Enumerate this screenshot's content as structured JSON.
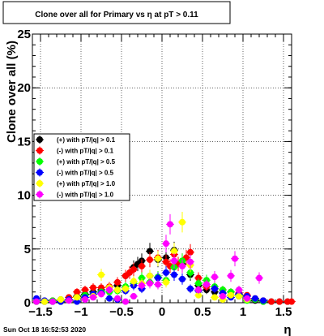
{
  "chart_data": {
    "type": "scatter",
    "title": "Clone  over all for Primary vs   η at pT > 0.11",
    "xlabel": "η",
    "ylabel": "Clone  over all (%)",
    "xlim": [
      -1.6,
      1.6
    ],
    "ylim": [
      0,
      25
    ],
    "x_ticks": [
      -1.5,
      -1,
      -0.5,
      0,
      0.5,
      1,
      1.5
    ],
    "x_tick_labels": [
      "−1.5",
      "−1",
      "−0.5",
      "0",
      "0.5",
      "1",
      "1.5"
    ],
    "y_ticks": [
      0,
      5,
      10,
      15,
      20,
      25
    ],
    "y_tick_labels": [
      "0",
      "5",
      "10",
      "15",
      "20",
      "25"
    ],
    "grid": true,
    "legend_placement": "center-left",
    "series": [
      {
        "name": "(+) with pT/|q| > 0.1",
        "color": "#000000",
        "x": [
          -1.55,
          -1.45,
          -1.35,
          -1.25,
          -1.15,
          -1.05,
          -0.95,
          -0.85,
          -0.75,
          -0.65,
          -0.55,
          -0.45,
          -0.35,
          -0.3,
          -0.25,
          -0.15,
          -0.05,
          0.05,
          0.15,
          0.25,
          0.35,
          0.45,
          0.55,
          0.65,
          0.75,
          0.85,
          0.95,
          1.05,
          1.15,
          1.25,
          1.35,
          1.45,
          1.55
        ],
        "y": [
          0.1,
          0.1,
          0.1,
          0.1,
          0.3,
          0.6,
          0.8,
          1.0,
          1.2,
          1.4,
          1.6,
          2.5,
          3.3,
          3.6,
          3.9,
          4.8,
          4.0,
          4.2,
          4.9,
          3.6,
          2.6,
          1.6,
          1.2,
          1.0,
          0.9,
          0.7,
          0.6,
          0.4,
          0.2,
          0.1,
          0.1,
          0.1,
          0.1
        ]
      },
      {
        "name": "(-) with pT/|q| > 0.1",
        "color": "#ff0000",
        "x": [
          -1.55,
          -1.45,
          -1.35,
          -1.25,
          -1.15,
          -1.05,
          -0.95,
          -0.85,
          -0.75,
          -0.65,
          -0.55,
          -0.45,
          -0.4,
          -0.35,
          -0.25,
          -0.15,
          -0.05,
          0.05,
          0.1,
          0.15,
          0.2,
          0.25,
          0.3,
          0.35,
          0.45,
          0.55,
          0.65,
          0.75,
          0.85,
          0.95,
          1.05,
          1.15,
          1.25,
          1.35,
          1.45,
          1.55,
          1.6
        ],
        "y": [
          0.1,
          0.1,
          0.2,
          0.3,
          0.5,
          1.0,
          1.2,
          1.4,
          1.4,
          1.5,
          1.9,
          2.5,
          2.8,
          3.1,
          3.4,
          4.0,
          4.2,
          3.8,
          3.4,
          4.5,
          3.6,
          3.9,
          4.2,
          4.7,
          2.3,
          1.5,
          1.3,
          1.2,
          1.0,
          0.9,
          0.7,
          0.4,
          0.2,
          0.1,
          0.1,
          0.1,
          0.1
        ]
      },
      {
        "name": "(+) with pT/|q| > 0.5",
        "color": "#00ff00",
        "x": [
          -1.55,
          -1.45,
          -1.35,
          -1.25,
          -1.15,
          -1.05,
          -0.95,
          -0.85,
          -0.75,
          -0.65,
          -0.55,
          -0.45,
          -0.35,
          -0.25,
          -0.15,
          -0.05,
          0.05,
          0.15,
          0.25,
          0.35,
          0.45,
          0.55,
          0.65,
          0.75,
          0.85,
          0.95,
          1.05,
          1.15,
          1.25
        ],
        "y": [
          0.1,
          0.1,
          0.2,
          0.3,
          0.3,
          0.5,
          0.7,
          0.8,
          1.0,
          1.0,
          1.1,
          1.5,
          1.8,
          2.3,
          1.9,
          2.4,
          2.1,
          3.3,
          3.9,
          2.8,
          1.8,
          2.1,
          1.5,
          1.2,
          1.0,
          0.7,
          0.2,
          0.3,
          0.1
        ]
      },
      {
        "name": "(-) with pT/|q| > 0.5",
        "color": "#0000ff",
        "x": [
          -1.55,
          -1.45,
          -1.35,
          -1.25,
          -1.15,
          -1.05,
          -0.95,
          -0.85,
          -0.75,
          -0.65,
          -0.55,
          -0.45,
          -0.35,
          -0.25,
          -0.15,
          -0.05,
          0.05,
          0.15,
          0.25,
          0.35,
          0.45,
          0.55,
          0.65,
          0.75,
          0.85,
          0.95,
          1.05,
          1.15,
          1.25
        ],
        "y": [
          0.4,
          0.2,
          0.1,
          0.1,
          0.3,
          0.1,
          0.5,
          0.8,
          0.9,
          0.4,
          0.3,
          1.1,
          1.6,
          1.3,
          2.5,
          2.3,
          2.8,
          2.6,
          2.2,
          1.3,
          1.1,
          1.7,
          1.3,
          0.9,
          0.5,
          0.8,
          0.6,
          0.4,
          0.2
        ]
      },
      {
        "name": "(+) with pT/|q| > 1.0",
        "color": "#ffff00",
        "x": [
          -1.45,
          -1.25,
          -1.05,
          -0.85,
          -0.75,
          -0.65,
          -0.55,
          -0.45,
          -0.35,
          -0.25,
          -0.15,
          -0.05,
          0.05,
          0.15,
          0.25,
          0.35,
          0.45,
          0.55,
          0.65,
          0.75,
          0.85,
          0.95,
          1.05
        ],
        "y": [
          0.1,
          0.3,
          0.5,
          0.6,
          2.6,
          1.4,
          1.2,
          1.3,
          2.0,
          1.8,
          2.5,
          4.1,
          1.9,
          4.8,
          7.5,
          3.5,
          0.7,
          1.7,
          0.5,
          0.3,
          0.7,
          0.6,
          0.3
        ]
      },
      {
        "name": "(-) with pT/|q| > 1.0",
        "color": "#ff00ff",
        "x": [
          -1.55,
          -1.35,
          -1.15,
          -0.95,
          -0.85,
          -0.75,
          -0.65,
          -0.55,
          -0.45,
          -0.35,
          -0.25,
          -0.15,
          -0.05,
          0.05,
          0.1,
          0.15,
          0.25,
          0.35,
          0.45,
          0.55,
          0.65,
          0.75,
          0.85,
          0.9,
          0.95,
          1.05,
          1.2
        ],
        "y": [
          0.1,
          0.1,
          0.2,
          0.3,
          0.5,
          0.8,
          1.2,
          0.4,
          0.1,
          0.6,
          1.6,
          1.8,
          1.7,
          5.5,
          7.3,
          3.9,
          3.4,
          3.8,
          1.2,
          1.7,
          2.4,
          0.6,
          2.5,
          4.1,
          1.2,
          0.4,
          2.3
        ]
      }
    ]
  },
  "footer": {
    "timestamp": "Sun Oct 18 16:52:53 2020"
  }
}
